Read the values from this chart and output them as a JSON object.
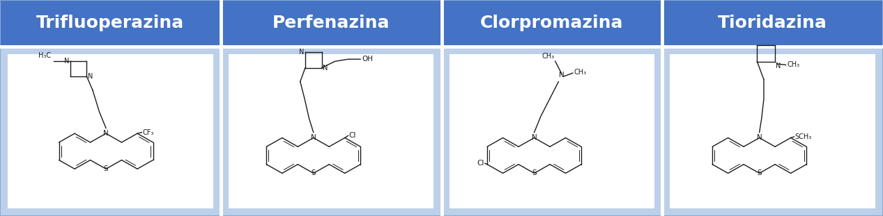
{
  "headers": [
    "Trifluoperazina",
    "Perfenazina",
    "Clorpromazina",
    "Tioridazina"
  ],
  "header_bg": "#4472C4",
  "header_text_color": "#FFFFFF",
  "body_bg": "#BDD0EA",
  "cell_bg": "#FFFFFF",
  "header_fontsize": 18,
  "header_font_weight": "bold",
  "fig_width": 12.67,
  "fig_height": 3.11,
  "n_cols": 4,
  "border_color": "#FFFFFF",
  "line_color": "#1a1a1a"
}
